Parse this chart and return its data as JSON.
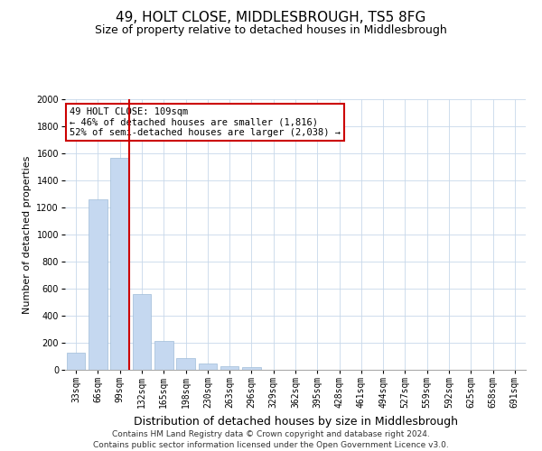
{
  "title": "49, HOLT CLOSE, MIDDLESBROUGH, TS5 8FG",
  "subtitle": "Size of property relative to detached houses in Middlesbrough",
  "xlabel": "Distribution of detached houses by size in Middlesbrough",
  "ylabel": "Number of detached properties",
  "categories": [
    "33sqm",
    "66sqm",
    "99sqm",
    "132sqm",
    "165sqm",
    "198sqm",
    "230sqm",
    "263sqm",
    "296sqm",
    "329sqm",
    "362sqm",
    "395sqm",
    "428sqm",
    "461sqm",
    "494sqm",
    "527sqm",
    "559sqm",
    "592sqm",
    "625sqm",
    "658sqm",
    "691sqm"
  ],
  "values": [
    130,
    1260,
    1570,
    560,
    215,
    90,
    45,
    25,
    18,
    0,
    0,
    0,
    0,
    0,
    0,
    0,
    0,
    0,
    0,
    0,
    0
  ],
  "bar_color": "#c5d8f0",
  "bar_edge_color": "#a0bcd8",
  "vline_x_index": 2,
  "vline_color": "#cc0000",
  "annotation_text": "49 HOLT CLOSE: 109sqm\n← 46% of detached houses are smaller (1,816)\n52% of semi-detached houses are larger (2,038) →",
  "annotation_box_color": "#ffffff",
  "annotation_box_edge": "#cc0000",
  "ylim": [
    0,
    2000
  ],
  "yticks": [
    0,
    200,
    400,
    600,
    800,
    1000,
    1200,
    1400,
    1600,
    1800,
    2000
  ],
  "background_color": "#ffffff",
  "grid_color": "#c8d8ea",
  "footer_line1": "Contains HM Land Registry data © Crown copyright and database right 2024.",
  "footer_line2": "Contains public sector information licensed under the Open Government Licence v3.0.",
  "title_fontsize": 11,
  "subtitle_fontsize": 9,
  "xlabel_fontsize": 9,
  "ylabel_fontsize": 8,
  "tick_fontsize": 7,
  "annotation_fontsize": 7.5,
  "footer_fontsize": 6.5
}
